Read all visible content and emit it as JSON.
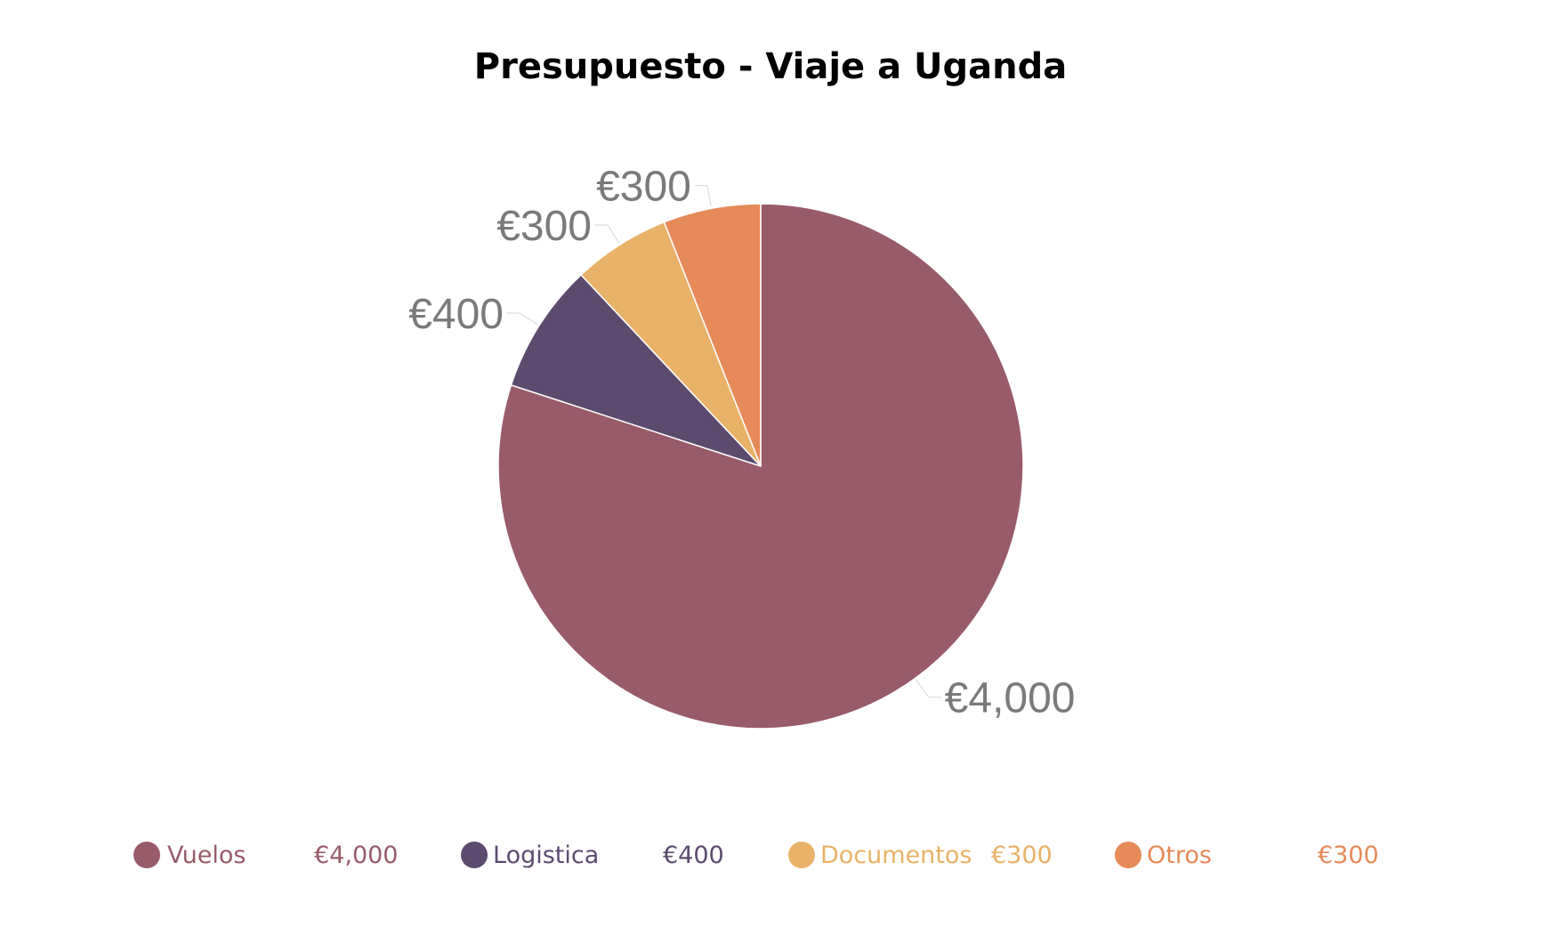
{
  "chart_data": {
    "type": "pie",
    "title": "Presupuesto - Viaje a Uganda",
    "categories": [
      "Vuelos",
      "Logistica",
      "Documentos",
      "Otros"
    ],
    "values": [
      4000,
      400,
      300,
      300
    ],
    "labels": [
      "€4,000",
      "€400",
      "€300",
      "€300"
    ],
    "colors": [
      "#985b6a",
      "#5c4b6e",
      "#e9b269",
      "#e68a59"
    ],
    "legend_position": "bottom",
    "start_angle_deg": 0,
    "direction": "clockwise"
  }
}
